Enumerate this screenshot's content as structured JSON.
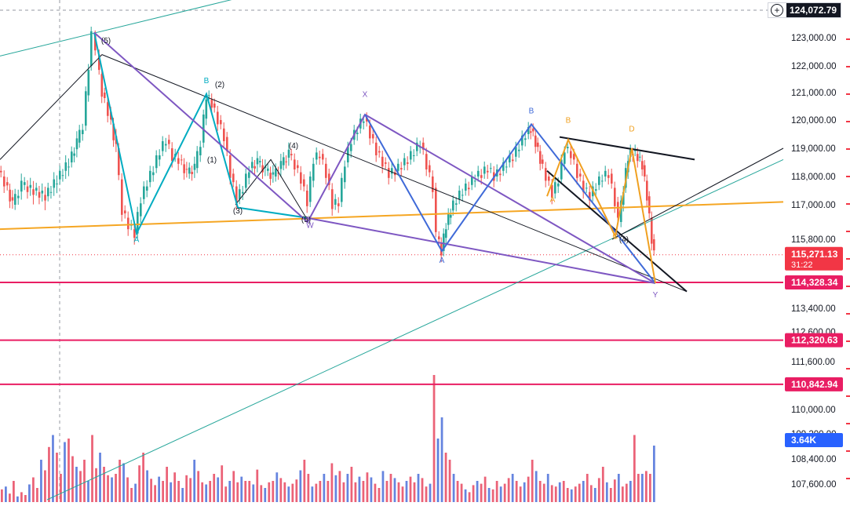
{
  "chart_data": {
    "type": "candlestick",
    "title": "",
    "xlabel": "",
    "ylabel": "",
    "ylim": [
      107100,
      124700
    ],
    "y_ticks": [
      "123,000.00",
      "122,000.00",
      "121,000.00",
      "120,000.00",
      "119,000.00",
      "118,000.00",
      "117,000.00",
      "115,800.00",
      "113,400.00",
      "112,600.00",
      "111,600.00",
      "110,000.00",
      "109,200.00",
      "108,400.00",
      "107,600.00"
    ],
    "price_badges": [
      {
        "value": "124,072.79",
        "color": "#131722",
        "name": "crosshair"
      },
      {
        "value": "115,271.13",
        "sub": "31:22",
        "color": "#f23645",
        "name": "last-price"
      },
      {
        "value": "114,328.34",
        "color": "#e91e63",
        "name": "level-1"
      },
      {
        "value": "112,320.63",
        "color": "#e91e63",
        "name": "level-2"
      },
      {
        "value": "110,842.94",
        "color": "#e91e63",
        "name": "level-3"
      },
      {
        "value": "3.64K",
        "color": "#2962ff",
        "name": "volume"
      }
    ],
    "horizontal_levels": [
      114328.34,
      112320.63,
      110842.94
    ],
    "last_price": 115271.13,
    "price_path": [
      [
        0,
        118200
      ],
      [
        8,
        117800
      ],
      [
        18,
        117000
      ],
      [
        30,
        117700
      ],
      [
        45,
        117500
      ],
      [
        60,
        117300
      ],
      [
        75,
        117900
      ],
      [
        90,
        118500
      ],
      [
        100,
        119200
      ],
      [
        108,
        119800
      ],
      [
        115,
        122000
      ],
      [
        120,
        123100
      ],
      [
        125,
        122400
      ],
      [
        132,
        121000
      ],
      [
        140,
        120300
      ],
      [
        150,
        119000
      ],
      [
        158,
        116800
      ],
      [
        166,
        116300
      ],
      [
        174,
        116000
      ],
      [
        182,
        117200
      ],
      [
        190,
        117800
      ],
      [
        198,
        118300
      ],
      [
        206,
        118900
      ],
      [
        214,
        119300
      ],
      [
        222,
        118700
      ],
      [
        230,
        118600
      ],
      [
        240,
        118100
      ],
      [
        250,
        118300
      ],
      [
        258,
        119200
      ],
      [
        265,
        120900
      ],
      [
        272,
        120600
      ],
      [
        280,
        120000
      ],
      [
        288,
        119400
      ],
      [
        296,
        118100
      ],
      [
        304,
        117200
      ],
      [
        312,
        117600
      ],
      [
        320,
        118300
      ],
      [
        330,
        118500
      ],
      [
        340,
        118200
      ],
      [
        350,
        118000
      ],
      [
        360,
        118400
      ],
      [
        370,
        118800
      ],
      [
        378,
        118400
      ],
      [
        386,
        117900
      ],
      [
        394,
        117100
      ],
      [
        402,
        118600
      ],
      [
        410,
        118800
      ],
      [
        418,
        118100
      ],
      [
        426,
        117000
      ],
      [
        434,
        117100
      ],
      [
        442,
        118500
      ],
      [
        450,
        119300
      ],
      [
        458,
        119700
      ],
      [
        466,
        120100
      ],
      [
        474,
        119500
      ],
      [
        482,
        118900
      ],
      [
        490,
        118500
      ],
      [
        498,
        118100
      ],
      [
        506,
        118200
      ],
      [
        514,
        118400
      ],
      [
        522,
        118600
      ],
      [
        530,
        118900
      ],
      [
        538,
        119200
      ],
      [
        546,
        118400
      ],
      [
        554,
        117600
      ],
      [
        558,
        115900
      ],
      [
        564,
        115400
      ],
      [
        570,
        116300
      ],
      [
        576,
        116800
      ],
      [
        584,
        117200
      ],
      [
        592,
        117500
      ],
      [
        600,
        117700
      ],
      [
        608,
        118000
      ],
      [
        616,
        118100
      ],
      [
        624,
        118300
      ],
      [
        632,
        118000
      ],
      [
        640,
        118200
      ],
      [
        648,
        118500
      ],
      [
        656,
        118700
      ],
      [
        664,
        119100
      ],
      [
        672,
        119500
      ],
      [
        678,
        119700
      ],
      [
        684,
        119200
      ],
      [
        690,
        118600
      ],
      [
        698,
        118000
      ],
      [
        706,
        117400
      ],
      [
        714,
        117900
      ],
      [
        722,
        119000
      ],
      [
        730,
        118800
      ],
      [
        738,
        118100
      ],
      [
        746,
        117600
      ],
      [
        754,
        117300
      ],
      [
        762,
        117700
      ],
      [
        770,
        118000
      ],
      [
        778,
        118100
      ],
      [
        786,
        117100
      ],
      [
        790,
        116400
      ],
      [
        796,
        117600
      ],
      [
        802,
        118700
      ],
      [
        808,
        118900
      ],
      [
        814,
        118700
      ],
      [
        820,
        118400
      ],
      [
        826,
        117300
      ],
      [
        832,
        115800
      ],
      [
        836,
        115271
      ]
    ],
    "volume_bars": [
      18,
      22,
      12,
      30,
      8,
      14,
      10,
      25,
      35,
      20,
      60,
      45,
      78,
      95,
      70,
      40,
      85,
      90,
      65,
      50,
      44,
      60,
      30,
      95,
      48,
      70,
      50,
      38,
      35,
      40,
      60,
      55,
      35,
      20,
      26,
      52,
      70,
      45,
      33,
      24,
      36,
      30,
      50,
      28,
      42,
      30,
      20,
      38,
      34,
      60,
      44,
      28,
      25,
      30,
      40,
      35,
      52,
      22,
      30,
      44,
      28,
      36,
      30,
      30,
      25,
      46,
      24,
      20,
      28,
      30,
      42,
      34,
      28,
      22,
      26,
      32,
      45,
      60,
      40,
      22,
      26,
      30,
      40,
      30,
      55,
      38,
      44,
      28,
      40,
      50,
      28,
      36,
      30,
      42,
      35,
      26,
      20,
      44,
      30,
      40,
      34,
      28,
      22,
      30,
      36,
      28,
      40,
      34,
      22,
      26,
      180,
      90,
      120,
      70,
      60,
      40,
      30,
      26,
      18,
      14,
      24,
      30,
      26,
      36,
      20,
      18,
      30,
      22,
      26,
      34,
      40,
      30,
      22,
      28,
      36,
      60,
      44,
      30,
      26,
      40,
      24,
      22,
      28,
      30,
      20,
      18,
      22,
      26,
      30,
      40,
      24,
      20,
      34,
      50,
      28,
      20,
      32,
      40,
      22,
      26,
      30,
      95,
      40,
      40,
      44,
      40,
      80
    ],
    "wave_labels": [
      {
        "text": "(5)",
        "price": 122800,
        "t": 135,
        "color": "#131722"
      },
      {
        "text": "(2)",
        "price": 121200,
        "t": 280,
        "color": "#131722"
      },
      {
        "text": "(1)",
        "price": 118500,
        "t": 270,
        "color": "#131722"
      },
      {
        "text": "(3)",
        "price": 116700,
        "t": 303,
        "color": "#131722"
      },
      {
        "text": "(4)",
        "price": 119000,
        "t": 374,
        "color": "#131722"
      },
      {
        "text": "(5)",
        "price": 116400,
        "t": 390,
        "color": "#131722"
      },
      {
        "text": "(4)",
        "price": 115700,
        "t": 795,
        "color": "#131722"
      },
      {
        "text": "B",
        "price": 121350,
        "t": 263,
        "color": "#00acc1"
      },
      {
        "text": "A",
        "price": 115700,
        "t": 174,
        "color": "#00acc1"
      },
      {
        "text": "X",
        "price": 120850,
        "t": 465,
        "color": "#7e57c2"
      },
      {
        "text": "W",
        "price": 116200,
        "t": 395,
        "color": "#7e57c2"
      },
      {
        "text": "Y",
        "price": 113800,
        "t": 835,
        "color": "#7e57c2"
      },
      {
        "text": "B",
        "price": 120250,
        "t": 677,
        "color": "#3f6ad8"
      },
      {
        "text": "A",
        "price": 115000,
        "t": 563,
        "color": "#3f6ad8"
      },
      {
        "text": "B",
        "price": 119900,
        "t": 724,
        "color": "#f0a020"
      },
      {
        "text": "D",
        "price": 119600,
        "t": 805,
        "color": "#f0a020"
      },
      {
        "text": "A",
        "price": 117100,
        "t": 704,
        "color": "#f0a020"
      },
      {
        "text": "C",
        "price": 115820,
        "t": 784,
        "color": "#f0a020"
      }
    ]
  }
}
